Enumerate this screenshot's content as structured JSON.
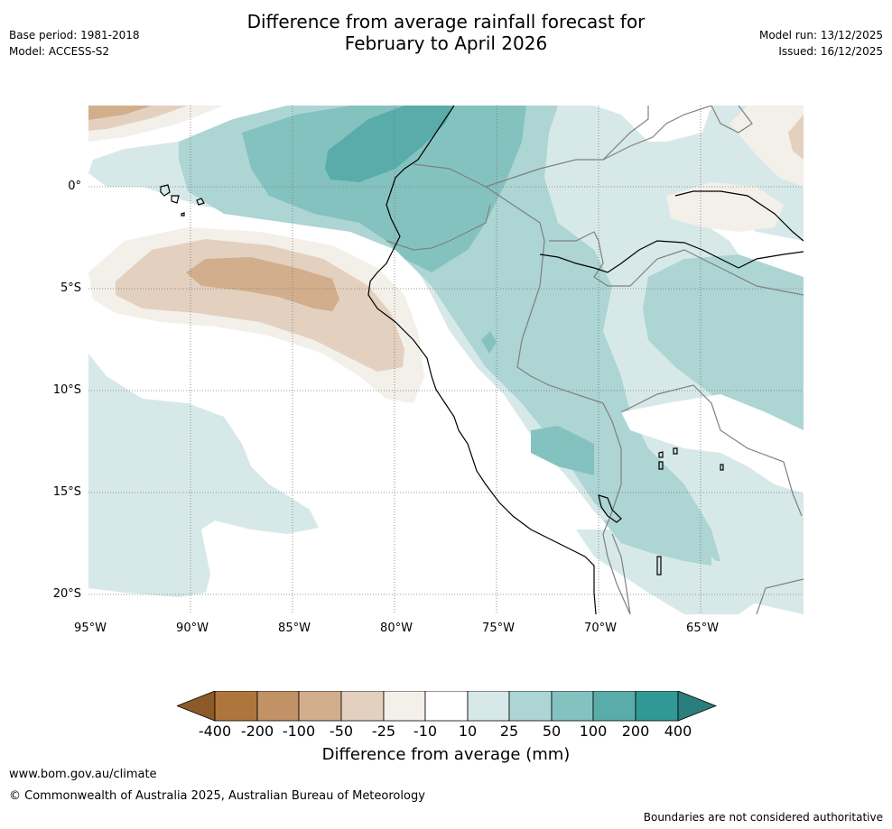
{
  "header": {
    "title_line1": "Difference from average rainfall forecast for",
    "title_line2": "February to April 2026",
    "base_period": "Base period: 1981-2018",
    "model": "Model: ACCESS-S2",
    "model_run": "Model run: 13/12/2025",
    "issued": "Issued: 16/12/2025"
  },
  "map": {
    "lat_labels": [
      "0°",
      "5°S",
      "10°S",
      "15°S",
      "20°S"
    ],
    "lon_labels": [
      "95°W",
      "90°W",
      "85°W",
      "80°W",
      "75°W",
      "70°W",
      "65°W"
    ],
    "colors": {
      "dry_400": "#8c5a28",
      "dry_200": "#ae763c",
      "dry_100": "#c19266",
      "dry_50": "#d2ae8c",
      "dry_25": "#e3d0bf",
      "dry_10": "#f3efe9",
      "neutral": "#ffffff",
      "wet_10": "#d6e9e8",
      "wet_25": "#acd5d4",
      "wet_50": "#84c2c0",
      "wet_100": "#5aacab",
      "wet_200": "#319995",
      "wet_400": "#2a7e7b"
    }
  },
  "colorbar": {
    "labels": [
      "-400",
      "-200",
      "-100",
      "-50",
      "-25",
      "-10",
      "10",
      "25",
      "50",
      "100",
      "200",
      "400"
    ],
    "title": "Difference from average (mm)"
  },
  "footer": {
    "url": "www.bom.gov.au/climate",
    "copyright": "© Commonwealth of Australia 2025, Australian Bureau of Meteorology",
    "disclaimer": "Boundaries are not considered authoritative"
  }
}
